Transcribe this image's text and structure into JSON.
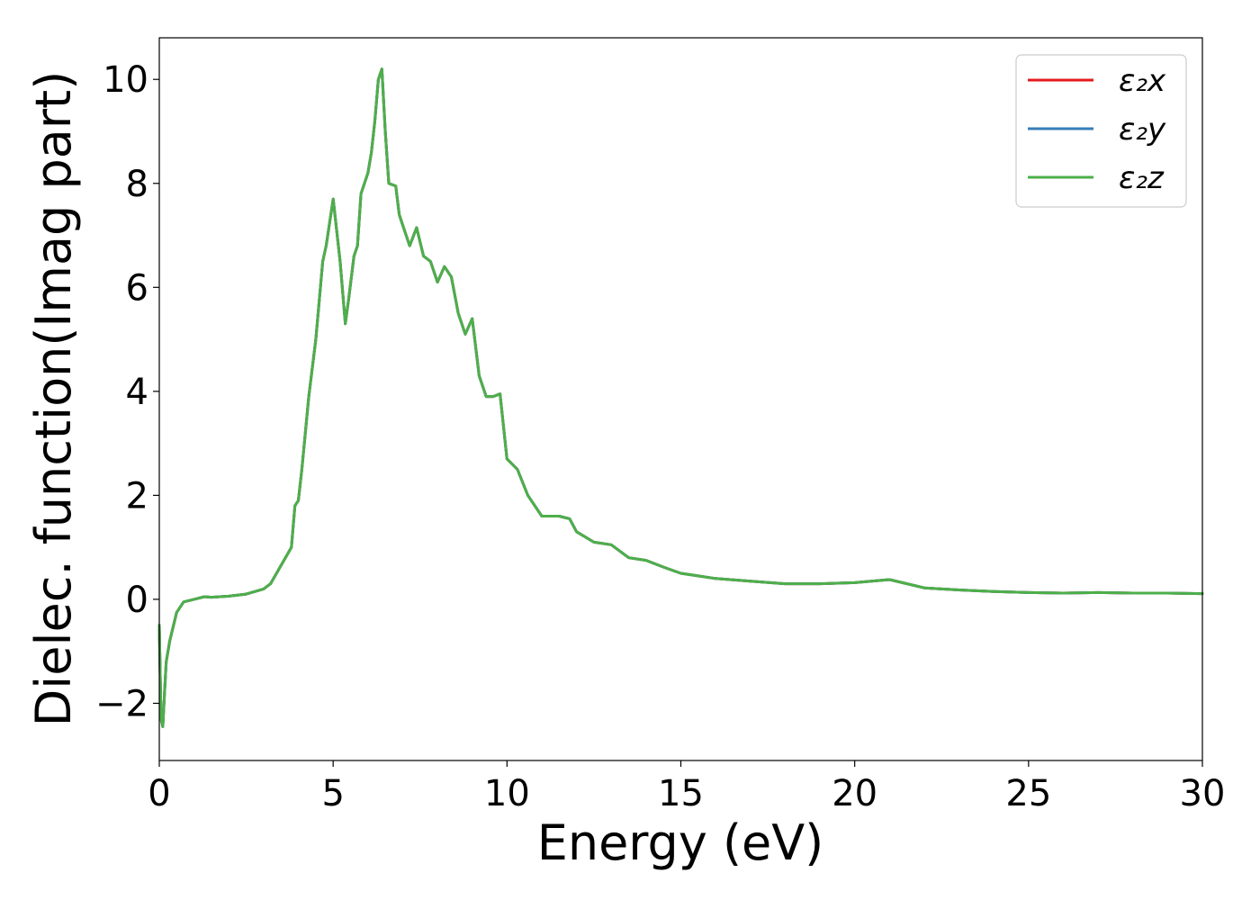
{
  "chart_data": {
    "type": "line",
    "xlabel": "Energy (eV)",
    "ylabel": "Dielec. function(Imag part)",
    "xlim": [
      0,
      30
    ],
    "ylim": [
      -3.1,
      10.8
    ],
    "xticks": [
      0,
      5,
      10,
      15,
      20,
      25,
      30
    ],
    "xtick_labels": [
      "0",
      "5",
      "10",
      "15",
      "20",
      "25",
      "30"
    ],
    "yticks": [
      -2,
      0,
      2,
      4,
      6,
      8,
      10
    ],
    "ytick_labels": [
      "−2",
      "0",
      "2",
      "4",
      "6",
      "8",
      "10"
    ],
    "grid": false,
    "legend_position": "top-right",
    "series": [
      {
        "name": "ε₂x",
        "color": "#e41a1c",
        "x": [
          0,
          0.05,
          0.1,
          0.15,
          0.2,
          0.3,
          0.5,
          0.7,
          1.0,
          1.3,
          1.5,
          2.0,
          2.5,
          3.0,
          3.2,
          3.5,
          3.8,
          3.9,
          4.0,
          4.1,
          4.3,
          4.5,
          4.7,
          4.8,
          5.0,
          5.2,
          5.35,
          5.45,
          5.6,
          5.7,
          5.8,
          6.0,
          6.1,
          6.2,
          6.3,
          6.4,
          6.5,
          6.6,
          6.8,
          6.9,
          7.0,
          7.2,
          7.4,
          7.6,
          7.8,
          8.0,
          8.2,
          8.4,
          8.6,
          8.8,
          9.0,
          9.2,
          9.4,
          9.6,
          9.8,
          10.0,
          10.3,
          10.6,
          11.0,
          11.5,
          11.8,
          12.0,
          12.5,
          13.0,
          13.5,
          14.0,
          14.5,
          15.0,
          16.0,
          17.0,
          18.0,
          19.0,
          20.0,
          21.0,
          22.0,
          23.0,
          24.0,
          25.0,
          26.0,
          27.0,
          28.0,
          29.0,
          30.0
        ],
        "y": [
          -0.5,
          -2.3,
          -2.45,
          -1.8,
          -1.2,
          -0.8,
          -0.25,
          -0.05,
          0,
          0.05,
          0.04,
          0.06,
          0.1,
          0.2,
          0.3,
          0.65,
          1.0,
          1.8,
          1.9,
          2.5,
          3.9,
          5.0,
          6.5,
          6.8,
          7.7,
          6.5,
          5.3,
          5.8,
          6.6,
          6.8,
          7.8,
          8.2,
          8.6,
          9.2,
          10.0,
          10.2,
          9.0,
          8.0,
          7.95,
          7.4,
          7.2,
          6.8,
          7.15,
          6.6,
          6.5,
          6.1,
          6.4,
          6.2,
          5.5,
          5.1,
          5.4,
          4.3,
          3.9,
          3.9,
          3.95,
          2.7,
          2.5,
          2.0,
          1.6,
          1.6,
          1.55,
          1.3,
          1.1,
          1.05,
          0.8,
          0.75,
          0.62,
          0.5,
          0.4,
          0.35,
          0.3,
          0.3,
          0.32,
          0.38,
          0.22,
          0.18,
          0.15,
          0.13,
          0.12,
          0.13,
          0.12,
          0.12,
          0.11
        ]
      },
      {
        "name": "ε₂y",
        "color": "#377eb8",
        "x": [
          0,
          0.05,
          0.1,
          0.15,
          0.2,
          0.3,
          0.5,
          0.7,
          1.0,
          1.3,
          1.5,
          2.0,
          2.5,
          3.0,
          3.2,
          3.5,
          3.8,
          3.9,
          4.0,
          4.1,
          4.3,
          4.5,
          4.7,
          4.8,
          5.0,
          5.2,
          5.35,
          5.45,
          5.6,
          5.7,
          5.8,
          6.0,
          6.1,
          6.2,
          6.3,
          6.4,
          6.5,
          6.6,
          6.8,
          6.9,
          7.0,
          7.2,
          7.4,
          7.6,
          7.8,
          8.0,
          8.2,
          8.4,
          8.6,
          8.8,
          9.0,
          9.2,
          9.4,
          9.6,
          9.8,
          10.0,
          10.3,
          10.6,
          11.0,
          11.5,
          11.8,
          12.0,
          12.5,
          13.0,
          13.5,
          14.0,
          14.5,
          15.0,
          16.0,
          17.0,
          18.0,
          19.0,
          20.0,
          21.0,
          22.0,
          23.0,
          24.0,
          25.0,
          26.0,
          27.0,
          28.0,
          29.0,
          30.0
        ],
        "y": [
          -0.5,
          -2.3,
          -2.45,
          -1.8,
          -1.2,
          -0.8,
          -0.25,
          -0.05,
          0,
          0.05,
          0.04,
          0.06,
          0.1,
          0.2,
          0.3,
          0.65,
          1.0,
          1.8,
          1.9,
          2.5,
          3.9,
          5.0,
          6.5,
          6.8,
          7.7,
          6.5,
          5.3,
          5.8,
          6.6,
          6.8,
          7.8,
          8.2,
          8.6,
          9.2,
          10.0,
          10.2,
          9.0,
          8.0,
          7.95,
          7.4,
          7.2,
          6.8,
          7.15,
          6.6,
          6.5,
          6.1,
          6.4,
          6.2,
          5.5,
          5.1,
          5.4,
          4.3,
          3.9,
          3.9,
          3.95,
          2.7,
          2.5,
          2.0,
          1.6,
          1.6,
          1.55,
          1.3,
          1.1,
          1.05,
          0.8,
          0.75,
          0.62,
          0.5,
          0.4,
          0.35,
          0.3,
          0.3,
          0.32,
          0.38,
          0.22,
          0.18,
          0.15,
          0.13,
          0.12,
          0.13,
          0.12,
          0.12,
          0.11
        ]
      },
      {
        "name": "ε₂z",
        "color": "#4daf4a",
        "x": [
          0,
          0.05,
          0.1,
          0.15,
          0.2,
          0.3,
          0.5,
          0.7,
          1.0,
          1.3,
          1.5,
          2.0,
          2.5,
          3.0,
          3.2,
          3.5,
          3.8,
          3.9,
          4.0,
          4.1,
          4.3,
          4.5,
          4.7,
          4.8,
          5.0,
          5.2,
          5.35,
          5.45,
          5.6,
          5.7,
          5.8,
          6.0,
          6.1,
          6.2,
          6.3,
          6.4,
          6.5,
          6.6,
          6.8,
          6.9,
          7.0,
          7.2,
          7.4,
          7.6,
          7.8,
          8.0,
          8.2,
          8.4,
          8.6,
          8.8,
          9.0,
          9.2,
          9.4,
          9.6,
          9.8,
          10.0,
          10.3,
          10.6,
          11.0,
          11.5,
          11.8,
          12.0,
          12.5,
          13.0,
          13.5,
          14.0,
          14.5,
          15.0,
          16.0,
          17.0,
          18.0,
          19.0,
          20.0,
          21.0,
          22.0,
          23.0,
          24.0,
          25.0,
          26.0,
          27.0,
          28.0,
          29.0,
          30.0
        ],
        "y": [
          -0.5,
          -2.3,
          -2.45,
          -1.8,
          -1.2,
          -0.8,
          -0.25,
          -0.05,
          0,
          0.05,
          0.04,
          0.06,
          0.1,
          0.2,
          0.3,
          0.65,
          1.0,
          1.8,
          1.9,
          2.5,
          3.9,
          5.0,
          6.5,
          6.8,
          7.7,
          6.5,
          5.3,
          5.8,
          6.6,
          6.8,
          7.8,
          8.2,
          8.6,
          9.2,
          10.0,
          10.2,
          9.0,
          8.0,
          7.95,
          7.4,
          7.2,
          6.8,
          7.15,
          6.6,
          6.5,
          6.1,
          6.4,
          6.2,
          5.5,
          5.1,
          5.4,
          4.3,
          3.9,
          3.9,
          3.95,
          2.7,
          2.5,
          2.0,
          1.6,
          1.6,
          1.55,
          1.3,
          1.1,
          1.05,
          0.8,
          0.75,
          0.62,
          0.5,
          0.4,
          0.35,
          0.3,
          0.3,
          0.32,
          0.38,
          0.22,
          0.18,
          0.15,
          0.13,
          0.12,
          0.13,
          0.12,
          0.12,
          0.11
        ]
      }
    ]
  }
}
